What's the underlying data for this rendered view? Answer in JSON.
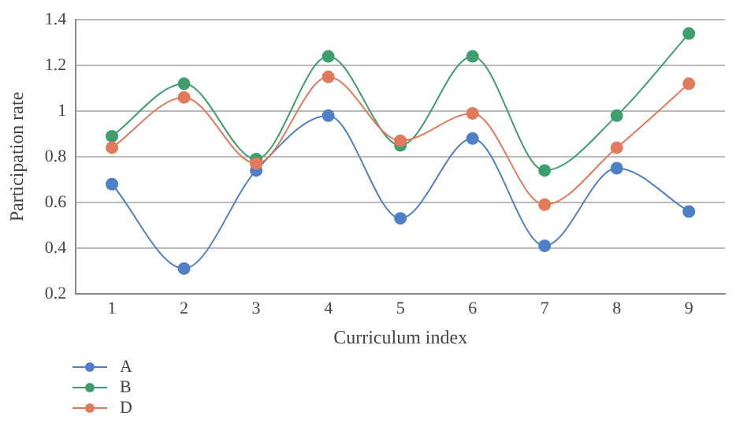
{
  "chart_data": {
    "type": "line",
    "xlabel": "Curriculum index",
    "ylabel": "Participation rate",
    "categories": [
      "1",
      "2",
      "3",
      "4",
      "5",
      "6",
      "7",
      "8",
      "9"
    ],
    "series": [
      {
        "name": "A",
        "color": "#4f7fc6",
        "values": [
          0.68,
          0.31,
          0.74,
          0.98,
          0.53,
          0.88,
          0.41,
          0.75,
          0.56
        ]
      },
      {
        "name": "B",
        "color": "#3e9e6e",
        "values": [
          0.89,
          1.12,
          0.79,
          1.24,
          0.85,
          1.24,
          0.74,
          0.98,
          1.34
        ]
      },
      {
        "name": "D",
        "color": "#e07a5a",
        "values": [
          0.84,
          1.06,
          0.77,
          1.15,
          0.87,
          0.99,
          0.59,
          0.84,
          1.12
        ]
      }
    ],
    "ylim": [
      0.2,
      1.4
    ],
    "yticks": [
      0.2,
      0.4,
      0.6,
      0.8,
      1,
      1.2,
      1.4
    ],
    "grid": "y",
    "legend": "bottom left",
    "marker": "circle",
    "line_style": "solid"
  }
}
